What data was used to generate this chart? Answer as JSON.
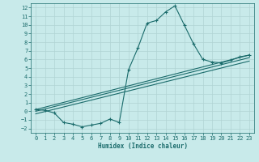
{
  "xlabel": "Humidex (Indice chaleur)",
  "bg_color": "#c8eaea",
  "line_color": "#1a6b6b",
  "grid_color": "#b0d4d4",
  "xlim": [
    -0.5,
    23.5
  ],
  "ylim": [
    -2.5,
    12.5
  ],
  "xticks": [
    0,
    1,
    2,
    3,
    4,
    5,
    6,
    7,
    8,
    9,
    10,
    11,
    12,
    13,
    14,
    15,
    16,
    17,
    18,
    19,
    20,
    21,
    22,
    23
  ],
  "yticks": [
    -2,
    -1,
    0,
    1,
    2,
    3,
    4,
    5,
    6,
    7,
    8,
    9,
    10,
    11,
    12
  ],
  "main_series": {
    "x": [
      0,
      1,
      2,
      3,
      4,
      5,
      6,
      7,
      8,
      9,
      10,
      11,
      12,
      13,
      14,
      15,
      16,
      17,
      18,
      19,
      20,
      21,
      22,
      23
    ],
    "y": [
      0.2,
      0.1,
      -0.2,
      -1.3,
      -1.5,
      -1.8,
      -1.6,
      -1.4,
      -0.9,
      -1.3,
      4.8,
      7.3,
      10.2,
      10.5,
      11.5,
      12.2,
      10.0,
      7.8,
      6.0,
      5.7,
      5.6,
      5.9,
      6.3,
      6.5
    ]
  },
  "trend_lines": [
    {
      "x": [
        0,
        23
      ],
      "y": [
        0.2,
        6.5
      ]
    },
    {
      "x": [
        0,
        23
      ],
      "y": [
        0.0,
        6.2
      ]
    },
    {
      "x": [
        0,
        23
      ],
      "y": [
        -0.3,
        5.8
      ]
    }
  ]
}
